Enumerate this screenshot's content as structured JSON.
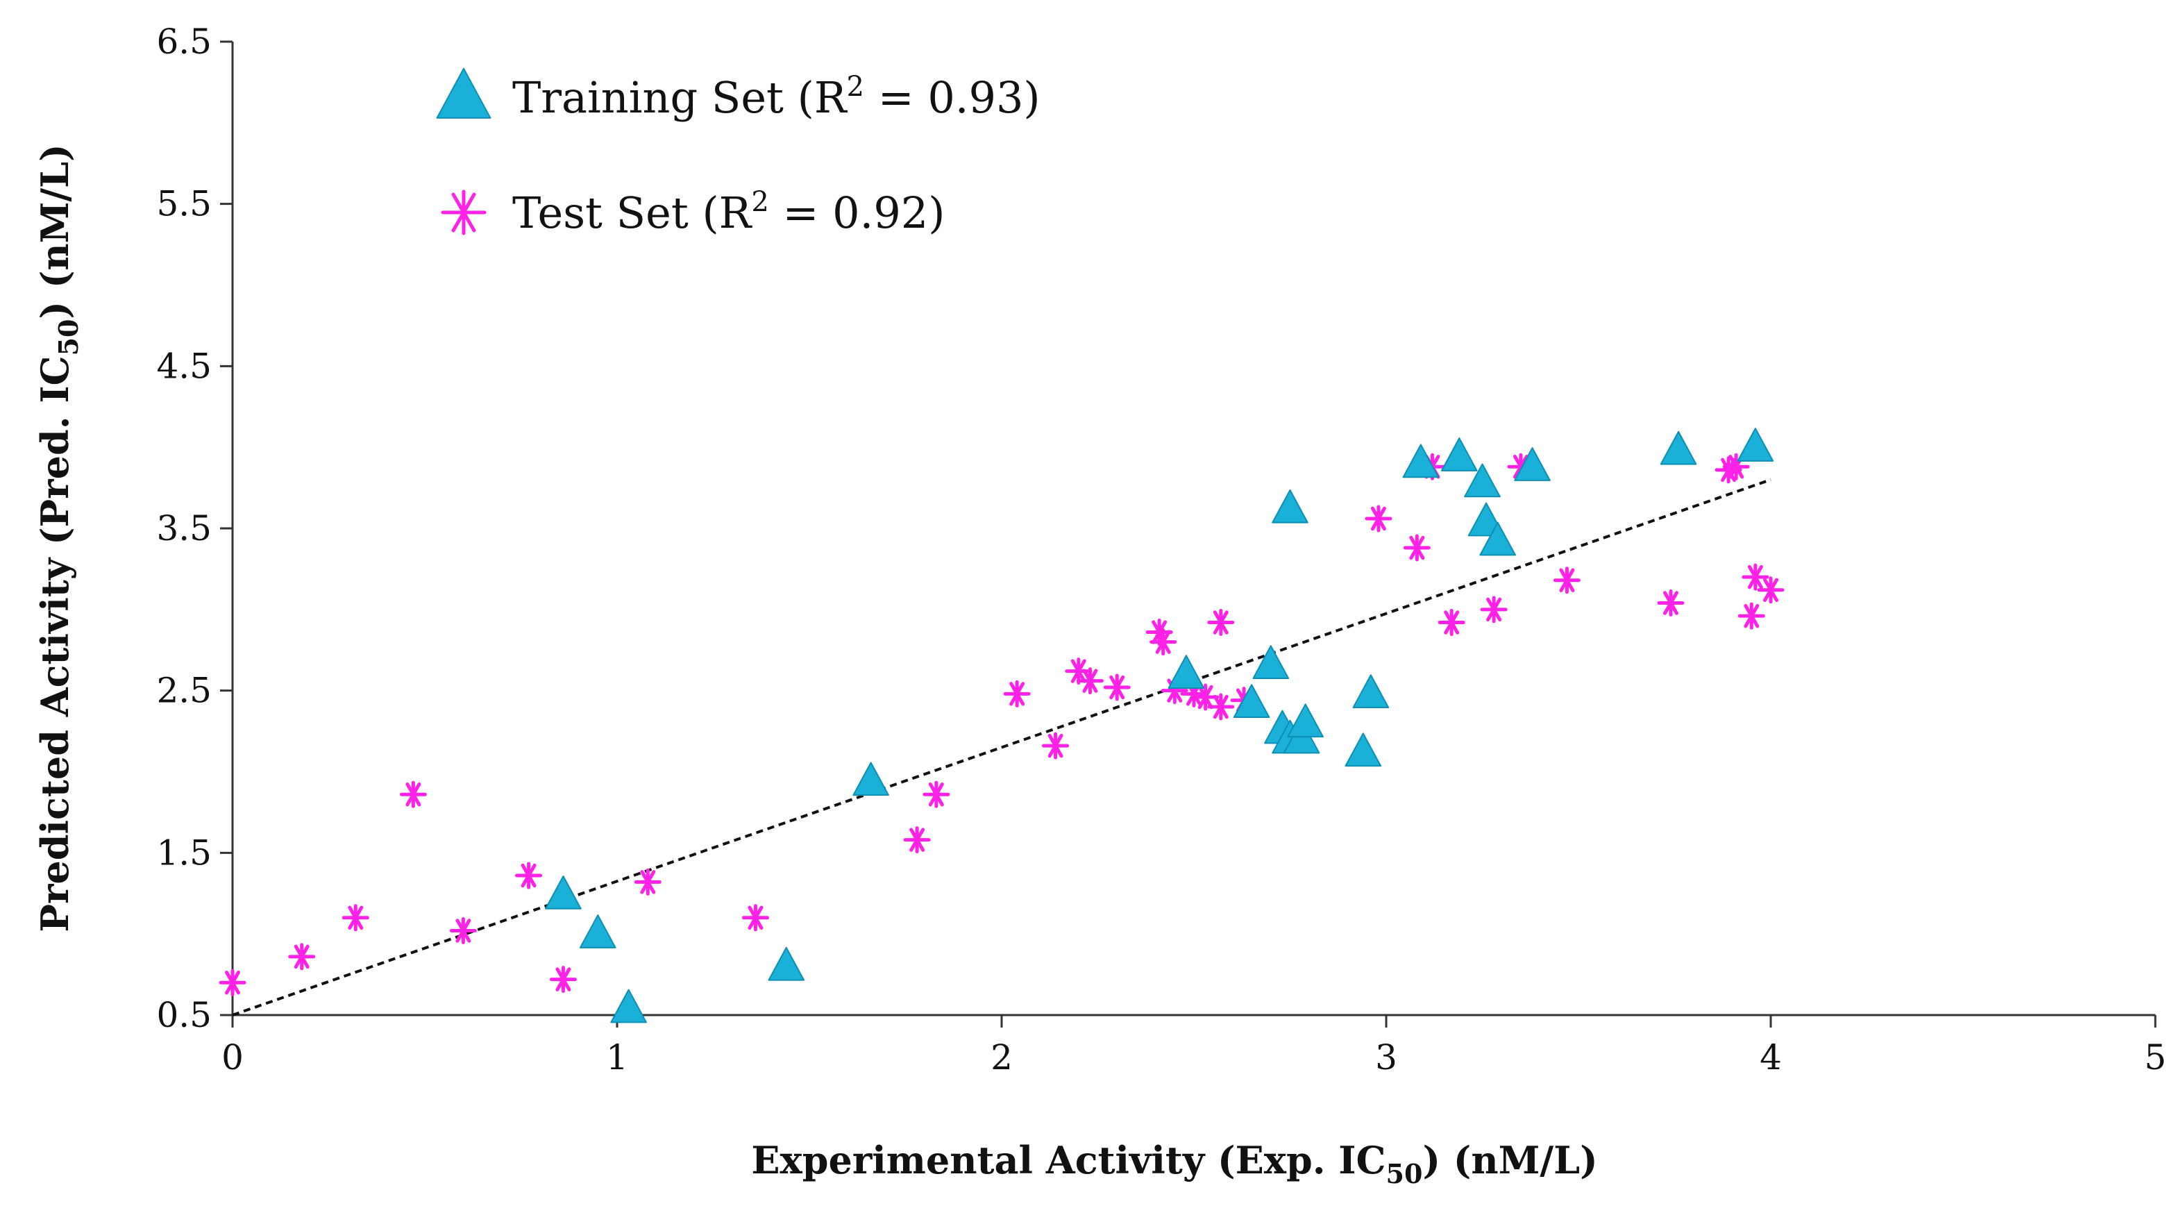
{
  "colors": {
    "training": "#1ab0d8",
    "test": "#ff22e6",
    "axis": "#333333",
    "text": "#111111",
    "regression_line": "#111111"
  },
  "chart_data": {
    "type": "scatter",
    "title": "",
    "xlabel": "Experimental Activity (Exp. IC50) (nM/L)",
    "xlabel_parts": {
      "before": "Experimental Activity (Exp. IC",
      "sub": "50",
      "after": ") (nM/L)"
    },
    "ylabel": "Predicted Activity (Pred. IC50) (nM/L)",
    "ylabel_parts": {
      "before": "Predicted Activity (Pred. IC",
      "sub": "50",
      "after": ") (nM/L)"
    },
    "xlim": [
      0,
      5
    ],
    "ylim": [
      0.5,
      6.5
    ],
    "xticks": [
      0,
      1,
      2,
      3,
      4,
      5
    ],
    "yticks": [
      0.5,
      1.5,
      2.5,
      3.5,
      4.5,
      5.5,
      6.5
    ],
    "xtick_labels": [
      "0",
      "1",
      "2",
      "3",
      "4",
      "5"
    ],
    "ytick_labels": [
      "0.5",
      "1.5",
      "2.5",
      "3.5",
      "4.5",
      "5.5",
      "6.5"
    ],
    "grid": false,
    "legend_position": "top-left",
    "series": [
      {
        "name": "Training Set",
        "legend": {
          "before": "Training Set (R",
          "sup": "2",
          "after": " =  0.93)"
        },
        "marker": "triangle",
        "x": [
          0.86,
          0.95,
          1.03,
          1.44,
          1.66,
          2.48,
          2.65,
          2.7,
          2.73,
          2.75,
          2.78,
          2.79,
          2.75,
          2.94,
          2.96,
          3.09,
          3.19,
          3.25,
          3.26,
          3.29,
          3.38,
          3.76,
          3.96
        ],
        "y": [
          1.24,
          1.0,
          0.54,
          0.8,
          1.94,
          2.6,
          2.42,
          2.66,
          2.26,
          2.2,
          2.2,
          2.3,
          3.62,
          2.12,
          2.48,
          3.9,
          3.94,
          3.78,
          3.54,
          3.42,
          3.88,
          3.98,
          4.0
        ]
      },
      {
        "name": "Test Set",
        "legend": {
          "before": "Test Set (R",
          "sup": "2",
          "after": " = 0.92)"
        },
        "marker": "asterisk",
        "x": [
          0.0,
          0.18,
          0.32,
          0.47,
          0.6,
          0.77,
          0.86,
          1.08,
          1.36,
          1.78,
          1.83,
          2.04,
          2.14,
          2.2,
          2.23,
          2.3,
          2.41,
          2.42,
          2.45,
          2.5,
          2.53,
          2.57,
          2.57,
          2.63,
          2.98,
          3.08,
          3.12,
          3.17,
          3.28,
          3.35,
          3.47,
          3.74,
          3.89,
          3.91,
          3.95,
          3.96,
          4.0
        ],
        "y": [
          0.7,
          0.86,
          1.1,
          1.86,
          1.02,
          1.36,
          0.72,
          1.32,
          1.1,
          1.58,
          1.86,
          2.48,
          2.16,
          2.62,
          2.56,
          2.52,
          2.86,
          2.8,
          2.5,
          2.48,
          2.46,
          2.4,
          2.92,
          2.44,
          3.56,
          3.38,
          3.88,
          2.92,
          3.0,
          3.88,
          3.18,
          3.04,
          3.86,
          3.88,
          2.96,
          3.2,
          3.12
        ]
      }
    ],
    "regression_line": {
      "x": [
        0,
        4
      ],
      "y": [
        0.5,
        3.8
      ],
      "style": "dashed"
    }
  }
}
